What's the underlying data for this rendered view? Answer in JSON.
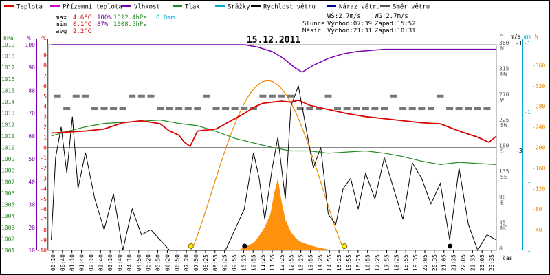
{
  "header": {
    "legend": [
      {
        "label": "Teplota",
        "color": "#dd0000"
      },
      {
        "label": "Přízemní teplota",
        "color": "#cc00cc"
      },
      {
        "label": "Vlhkost",
        "color": "#7700aa"
      },
      {
        "label": "Tlak",
        "color": "#228822"
      },
      {
        "label": "Srážky",
        "color": "#00aacc"
      },
      {
        "label": "Rychlost větru",
        "color": "#000000"
      },
      {
        "label": "Náraz větru",
        "color": "#000088"
      },
      {
        "label": "Směr větru",
        "color": "#555555"
      }
    ],
    "stats": [
      {
        "label": "max",
        "temp": "4.6°C",
        "hum": "100%",
        "press": "1012.4hPa",
        "rain": "0.0mm"
      },
      {
        "label": "min",
        "temp": "0.1°C",
        "hum": "87%",
        "press": "1008.5hPa",
        "rain": ""
      },
      {
        "label": "avg",
        "temp": "2.2°C",
        "hum": "",
        "press": "",
        "rain": ""
      }
    ],
    "wind_ws": "WS:2.7m/s",
    "wind_wg": "WG:2.7m/s",
    "sun_label": "Slunce",
    "sun_rise": "Východ:07:39",
    "sun_set": "Západ:15:52",
    "moon_label": "Měsíc",
    "moon_rise": "Východ:21:31",
    "moon_set": "Západ:10:31",
    "date": "15.12.2011",
    "xlabel": "čas"
  },
  "axes": {
    "hpa_unit": "hPa",
    "pct_unit": "%",
    "degc_unit": "°C",
    "deg_unit": "°",
    "ms_unit": "m/s",
    "mm_unit": "mm",
    "w_unit": "W",
    "hpa_ticks": [
      "1019",
      "1018",
      "1017",
      "1016",
      "1015",
      "1014",
      "1013",
      "1012",
      "1011",
      "1010",
      "1009",
      "1008",
      "1007",
      "1006",
      "1005",
      "1004",
      "1003",
      "1002",
      "1001"
    ],
    "pct_ticks": [
      "100",
      "90",
      "80",
      "70",
      "60",
      "50",
      "40",
      "30",
      "20",
      "10"
    ],
    "degc_ticks": [
      "9",
      "8",
      "7",
      "6",
      "5",
      "4",
      "3",
      "2",
      "1",
      "0",
      "-1",
      "-2",
      "-3",
      "-4",
      "-5",
      "-6",
      "-7",
      "-8",
      "-9",
      "-10"
    ],
    "dir_ticks": [
      {
        "deg": "360",
        "dir": "N"
      },
      {
        "deg": "315",
        "dir": "NW"
      },
      {
        "deg": "270",
        "dir": "W"
      },
      {
        "deg": "225",
        "dir": "SW"
      },
      {
        "deg": "180",
        "dir": "S"
      },
      {
        "deg": "135",
        "dir": "SE"
      },
      {
        "deg": "90",
        "dir": "E"
      },
      {
        "deg": "45",
        "dir": "NE"
      },
      {
        "deg": "0",
        "dir": ""
      }
    ],
    "ms_ticks": [
      "-1",
      "-3"
    ],
    "mm_ticks": [
      "-1",
      "-1",
      "-1",
      "-1"
    ],
    "w_ticks": [
      "-360",
      "-320",
      "-280",
      "-240",
      "-200",
      "-160",
      "-120",
      "-80",
      "-40"
    ],
    "x_ticks": [
      "00:10",
      "00:40",
      "01:10",
      "01:40",
      "02:10",
      "02:40",
      "03:10",
      "03:40",
      "04:10",
      "04:50",
      "05:20",
      "05:50",
      "06:20",
      "06:50",
      "07:20",
      "07:50",
      "08:25",
      "08:55",
      "09:25",
      "09:55",
      "10:25",
      "10:55",
      "11:25",
      "11:55",
      "12:25",
      "12:55",
      "13:25",
      "13:55",
      "14:25",
      "14:55",
      "15:25",
      "15:55",
      "16:25",
      "16:55",
      "17:25",
      "17:55",
      "18:25",
      "18:55",
      "19:35",
      "20:05",
      "20:35",
      "21:05",
      "21:35",
      "22:05",
      "22:35",
      "23:05",
      "23:35"
    ]
  },
  "chart_data": {
    "type": "line",
    "title": "15.12.2011",
    "x_unit": "hour of day",
    "xlim": [
      0,
      24
    ],
    "temperature_ylim": [
      -10,
      10
    ],
    "pressure_ylim": [
      1001,
      1019
    ],
    "humidity_ylim": [
      10,
      100
    ],
    "series": [
      {
        "name": "Teplota",
        "axis": "temperature",
        "x": [
          0.17,
          1,
          2,
          3,
          4,
          5,
          6,
          6.5,
          7,
          7.3,
          7.6,
          8,
          9,
          10,
          10.5,
          11,
          11.5,
          12,
          12.5,
          13,
          13.4,
          14,
          14.5,
          15,
          16,
          17,
          18,
          19,
          20,
          21,
          22,
          23,
          23.6,
          24
        ],
        "y": [
          1.4,
          1.5,
          1.6,
          1.8,
          2.4,
          2.6,
          2.3,
          1.6,
          1.2,
          0.5,
          0.1,
          1.6,
          1.8,
          2.8,
          3.3,
          3.9,
          4.3,
          4.4,
          4.5,
          4.4,
          4.6,
          4.1,
          3.9,
          3.7,
          3.3,
          3.0,
          2.8,
          2.6,
          2.4,
          2.3,
          1.6,
          1.0,
          0.5,
          1.1
        ]
      },
      {
        "name": "Vlhkost",
        "axis": "humidity",
        "x": [
          0.17,
          6,
          9.5,
          10.5,
          11.2,
          12,
          12.6,
          13.2,
          13.6,
          14.2,
          15,
          15.8,
          16.5,
          18,
          20,
          22,
          24
        ],
        "y": [
          100,
          100,
          100,
          100,
          99,
          97,
          94,
          90,
          88,
          91,
          94,
          96,
          97,
          98,
          98,
          98,
          98
        ]
      },
      {
        "name": "Tlak",
        "axis": "pressure",
        "x": [
          0.17,
          1,
          2,
          3,
          4,
          5,
          6,
          7,
          8,
          9,
          10,
          11,
          12,
          13,
          14,
          15,
          16,
          17,
          18,
          19,
          20,
          21,
          22,
          23,
          24
        ],
        "y": [
          1011.0,
          1011.4,
          1011.8,
          1012.1,
          1012.2,
          1012.3,
          1012.4,
          1012.1,
          1011.9,
          1011.4,
          1010.8,
          1010.4,
          1010.0,
          1009.7,
          1009.7,
          1009.5,
          1009.6,
          1009.7,
          1009.5,
          1009.2,
          1008.8,
          1008.5,
          1008.7,
          1008.6,
          1008.5
        ]
      },
      {
        "name": "Rychlost větru",
        "axis": "wind_ms",
        "x": [
          0.17,
          0.4,
          0.7,
          1.0,
          1.3,
          1.6,
          2.0,
          2.5,
          3.0,
          3.5,
          4.0,
          4.5,
          5.0,
          5.5,
          6.0,
          6.5,
          7.0,
          7.5,
          8.0,
          8.5,
          9.0,
          9.5,
          10.0,
          10.5,
          11.0,
          11.3,
          11.6,
          12.0,
          12.3,
          12.7,
          13.0,
          13.4,
          13.8,
          14.2,
          14.6,
          15.0,
          15.4,
          15.8,
          16.2,
          16.6,
          17.0,
          17.5,
          18.0,
          18.5,
          19.0,
          19.5,
          20.0,
          20.5,
          21.0,
          21.5,
          22.0,
          22.5,
          23.0,
          23.5,
          24.0
        ],
        "y": [
          0.2,
          1.8,
          2.4,
          1.5,
          2.6,
          1.2,
          1.9,
          1.0,
          0.4,
          1.1,
          0.0,
          0.8,
          0.3,
          0.4,
          0.2,
          0.0,
          0.0,
          0.0,
          0.0,
          0.0,
          0.0,
          0.0,
          0.4,
          0.8,
          1.9,
          1.4,
          0.6,
          1.6,
          2.2,
          1.0,
          2.8,
          3.2,
          2.4,
          1.6,
          2.0,
          0.7,
          0.5,
          1.2,
          1.4,
          0.8,
          1.5,
          1.0,
          1.8,
          1.2,
          0.6,
          1.7,
          1.4,
          0.9,
          1.3,
          0.2,
          1.6,
          0.5,
          0.0,
          0.3,
          0.2
        ]
      },
      {
        "name": "Směr větru",
        "axis": "direction_deg",
        "x": [
          0.5,
          1,
          1.5,
          2,
          2.5,
          3,
          3.5,
          4,
          4.5,
          5,
          5.5,
          6,
          6.5,
          7,
          7.5,
          8,
          8.5,
          9,
          9.5,
          10,
          10.5,
          11,
          11.5,
          12,
          12.5,
          13,
          13.5,
          14,
          14.5,
          15,
          15.5,
          16,
          16.5,
          17,
          17.5,
          18,
          18.5,
          19,
          19.5,
          20,
          20.5,
          21,
          21.5,
          22,
          22.5,
          23,
          23.5
        ],
        "y": [
          270,
          248,
          270,
          270,
          248,
          248,
          248,
          248,
          270,
          270,
          270,
          248,
          248,
          248,
          248,
          248,
          270,
          248,
          248,
          248,
          248,
          248,
          270,
          270,
          270,
          270,
          248,
          248,
          248,
          270,
          248,
          248,
          248,
          248,
          248,
          248,
          270,
          248,
          248,
          248,
          248,
          270,
          248,
          248,
          248,
          248,
          248
        ]
      }
    ],
    "solar_radiation": {
      "name": "Sluneční záření",
      "peak_time": 11.8,
      "peak_w": 330,
      "sunrise": 7.65,
      "sunset": 15.87,
      "burst_peak_time": 12.2,
      "burst_peak_w": 140
    }
  }
}
